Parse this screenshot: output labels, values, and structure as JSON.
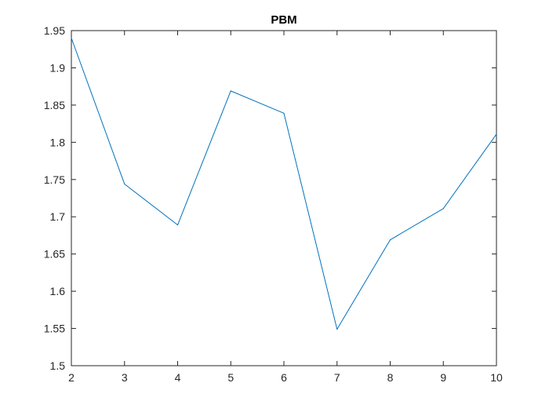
{
  "chart_data": {
    "type": "line",
    "title": "PBM",
    "xlabel": "",
    "ylabel": "",
    "xlim": [
      2,
      10
    ],
    "ylim": [
      1.5,
      1.95
    ],
    "xticks": [
      2,
      3,
      4,
      5,
      6,
      7,
      8,
      9,
      10
    ],
    "yticks": [
      1.5,
      1.55,
      1.6,
      1.65,
      1.7,
      1.75,
      1.8,
      1.85,
      1.9,
      1.95
    ],
    "ytick_labels": [
      "1.5",
      "1.55",
      "1.6",
      "1.65",
      "1.7",
      "1.75",
      "1.8",
      "1.85",
      "1.9",
      "1.95"
    ],
    "grid": false,
    "series": [
      {
        "x": [
          2,
          3,
          4,
          5,
          6,
          7,
          8,
          9,
          10
        ],
        "values": [
          1.94,
          1.744,
          1.689,
          1.869,
          1.839,
          1.549,
          1.669,
          1.711,
          1.811
        ],
        "color": "#0072BD"
      }
    ]
  }
}
